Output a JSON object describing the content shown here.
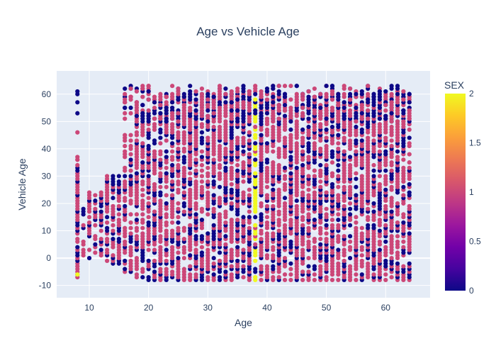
{
  "chart_data": {
    "type": "scatter",
    "title": "Age vs Vehicle Age",
    "xlabel": "Age",
    "ylabel": "Vehicle Age",
    "xlim": [
      4.5,
      67.5
    ],
    "ylim": [
      -14.5,
      68.5
    ],
    "xticks": [
      10,
      20,
      30,
      40,
      50,
      60
    ],
    "yticks": [
      -10,
      0,
      10,
      20,
      30,
      40,
      50,
      60
    ],
    "x_domain": [
      8,
      64
    ],
    "y_domain": [
      -9,
      63
    ],
    "color_column": "SEX",
    "colorscale": [
      "#0d0887",
      "#46039f",
      "#7201a8",
      "#9c179e",
      "#bd3786",
      "#d8576b",
      "#ed7953",
      "#fb9f3a",
      "#fdca26",
      "#f0f921"
    ],
    "colorbar": {
      "title": "SEX",
      "range": [
        0,
        2
      ],
      "ticks": [
        "0",
        "0.5",
        "1",
        "1.5",
        "2"
      ]
    },
    "series_colors": {
      "sex_0": "#0d0887",
      "sex_1": "#cc4778",
      "sex_2": "#f0f921"
    },
    "value_distribution": {
      "age_38_high_share": "yes",
      "age_8_has_outliers": [
        61,
        60,
        57,
        53,
        46,
        37,
        36
      ]
    },
    "grid": true,
    "legend": "colorbar-right"
  }
}
